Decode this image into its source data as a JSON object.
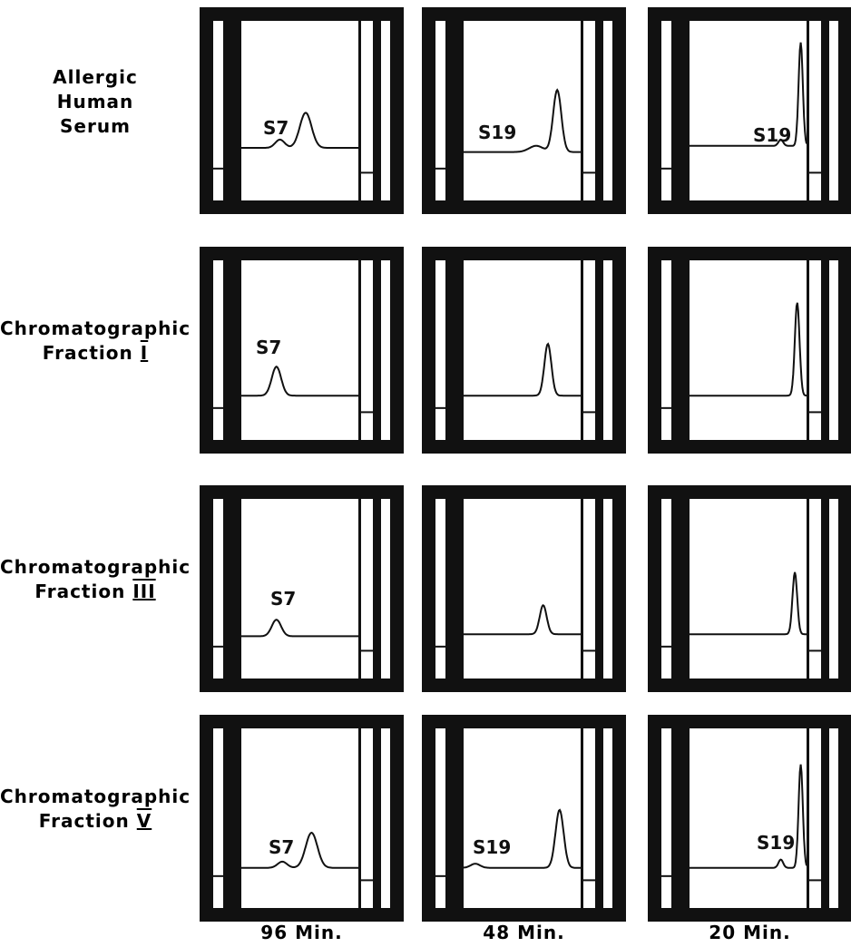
{
  "rows": [
    {
      "label_lines": [
        "Allergic",
        "Human",
        "Serum"
      ],
      "panels": [
        {
          "label": "S7"
        },
        {
          "label": "S19"
        },
        {
          "label": "S19"
        }
      ]
    },
    {
      "label_lines": [
        "Chromatographic",
        "Fraction"
      ],
      "numeral": "I",
      "panels": [
        {
          "label": "S7"
        },
        null,
        null
      ]
    },
    {
      "label_lines": [
        "Chromatographic",
        "Fraction"
      ],
      "numeral": "III",
      "panels": [
        {
          "label": "S7"
        },
        null,
        null
      ]
    },
    {
      "label_lines": [
        "Chromatographic",
        "Fraction"
      ],
      "numeral": "V",
      "panels": [
        {
          "label": "S7"
        },
        {
          "label": "S19"
        },
        {
          "label": "S19"
        }
      ]
    }
  ],
  "columns": [
    "96 Min.",
    "48 Min.",
    "20 Min."
  ]
}
